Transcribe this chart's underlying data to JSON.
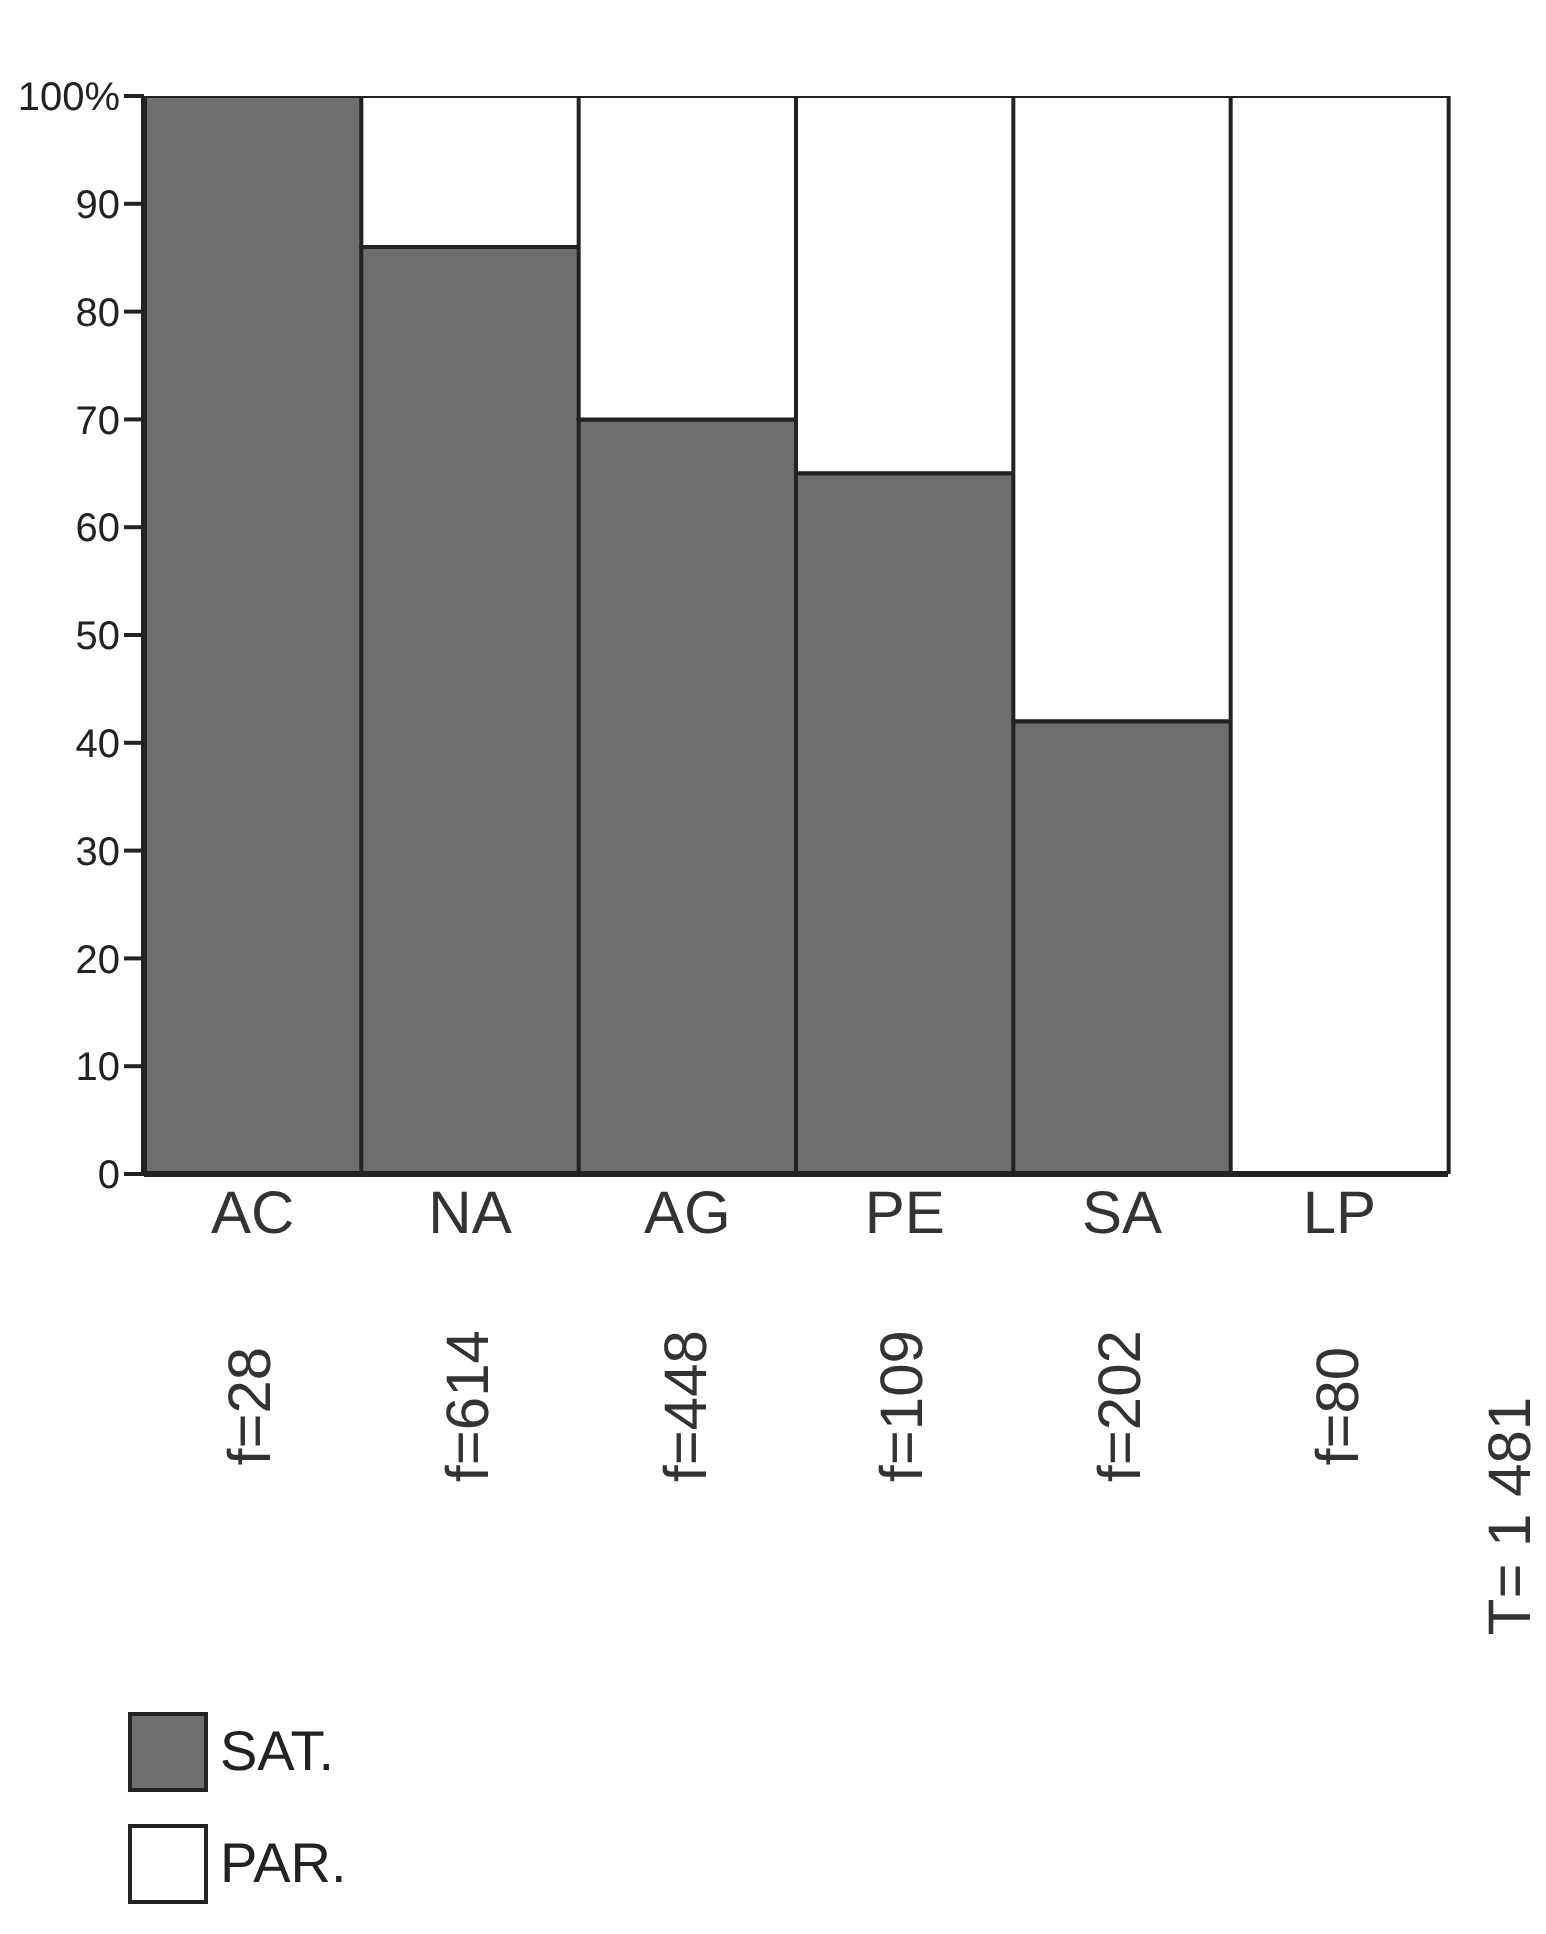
{
  "chart_data": {
    "type": "bar",
    "stacked": true,
    "categories": [
      "AC",
      "NA",
      "AG",
      "PE",
      "SA",
      "LP"
    ],
    "series": [
      {
        "name": "SAT.",
        "color": "#6e6e6e",
        "values": [
          100,
          86,
          70,
          65,
          42,
          0
        ]
      },
      {
        "name": "PAR.",
        "color": "#ffffff",
        "values": [
          0,
          14,
          30,
          35,
          58,
          100
        ]
      }
    ],
    "ylim": [
      0,
      100
    ],
    "yticks": [
      0,
      10,
      20,
      30,
      40,
      50,
      60,
      70,
      80,
      90,
      {
        "value": 100,
        "label": "100%"
      }
    ],
    "grid": false,
    "legend": "bottom left",
    "annotations": [
      "f=28",
      "f=614",
      "f=448",
      "f=109",
      "f=202",
      "f=80",
      "T= 1 481"
    ]
  }
}
